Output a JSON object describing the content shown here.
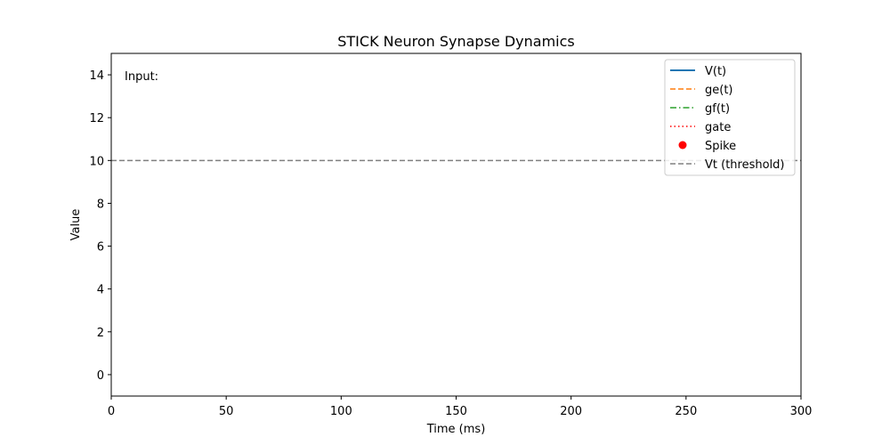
{
  "chart_data": {
    "type": "line",
    "title": "STICK Neuron Synapse Dynamics",
    "xlabel": "Time (ms)",
    "ylabel": "Value",
    "xlim": [
      0,
      300
    ],
    "ylim": [
      -1,
      15
    ],
    "xticks": [
      0,
      50,
      100,
      150,
      200,
      250,
      300
    ],
    "yticks": [
      0,
      2,
      4,
      6,
      8,
      10,
      12,
      14
    ],
    "grid": false,
    "legend_position": "top-right",
    "annotation": "Input:",
    "series": [
      {
        "name": "V(t)",
        "style": "solid",
        "color": "#1f77b4",
        "x": [],
        "y": []
      },
      {
        "name": "ge(t)",
        "style": "dashed",
        "color": "#ff7f0e",
        "x": [],
        "y": []
      },
      {
        "name": "gf(t)",
        "style": "dashdot",
        "color": "#2ca02c",
        "x": [],
        "y": []
      },
      {
        "name": "gate",
        "style": "dotted",
        "color": "#ff0000",
        "x": [],
        "y": []
      },
      {
        "name": "Spike",
        "style": "marker",
        "color": "#ff0000",
        "x": [],
        "y": []
      },
      {
        "name": "Vt (threshold)",
        "style": "hline",
        "color": "#808080",
        "y_value": 10
      }
    ]
  }
}
